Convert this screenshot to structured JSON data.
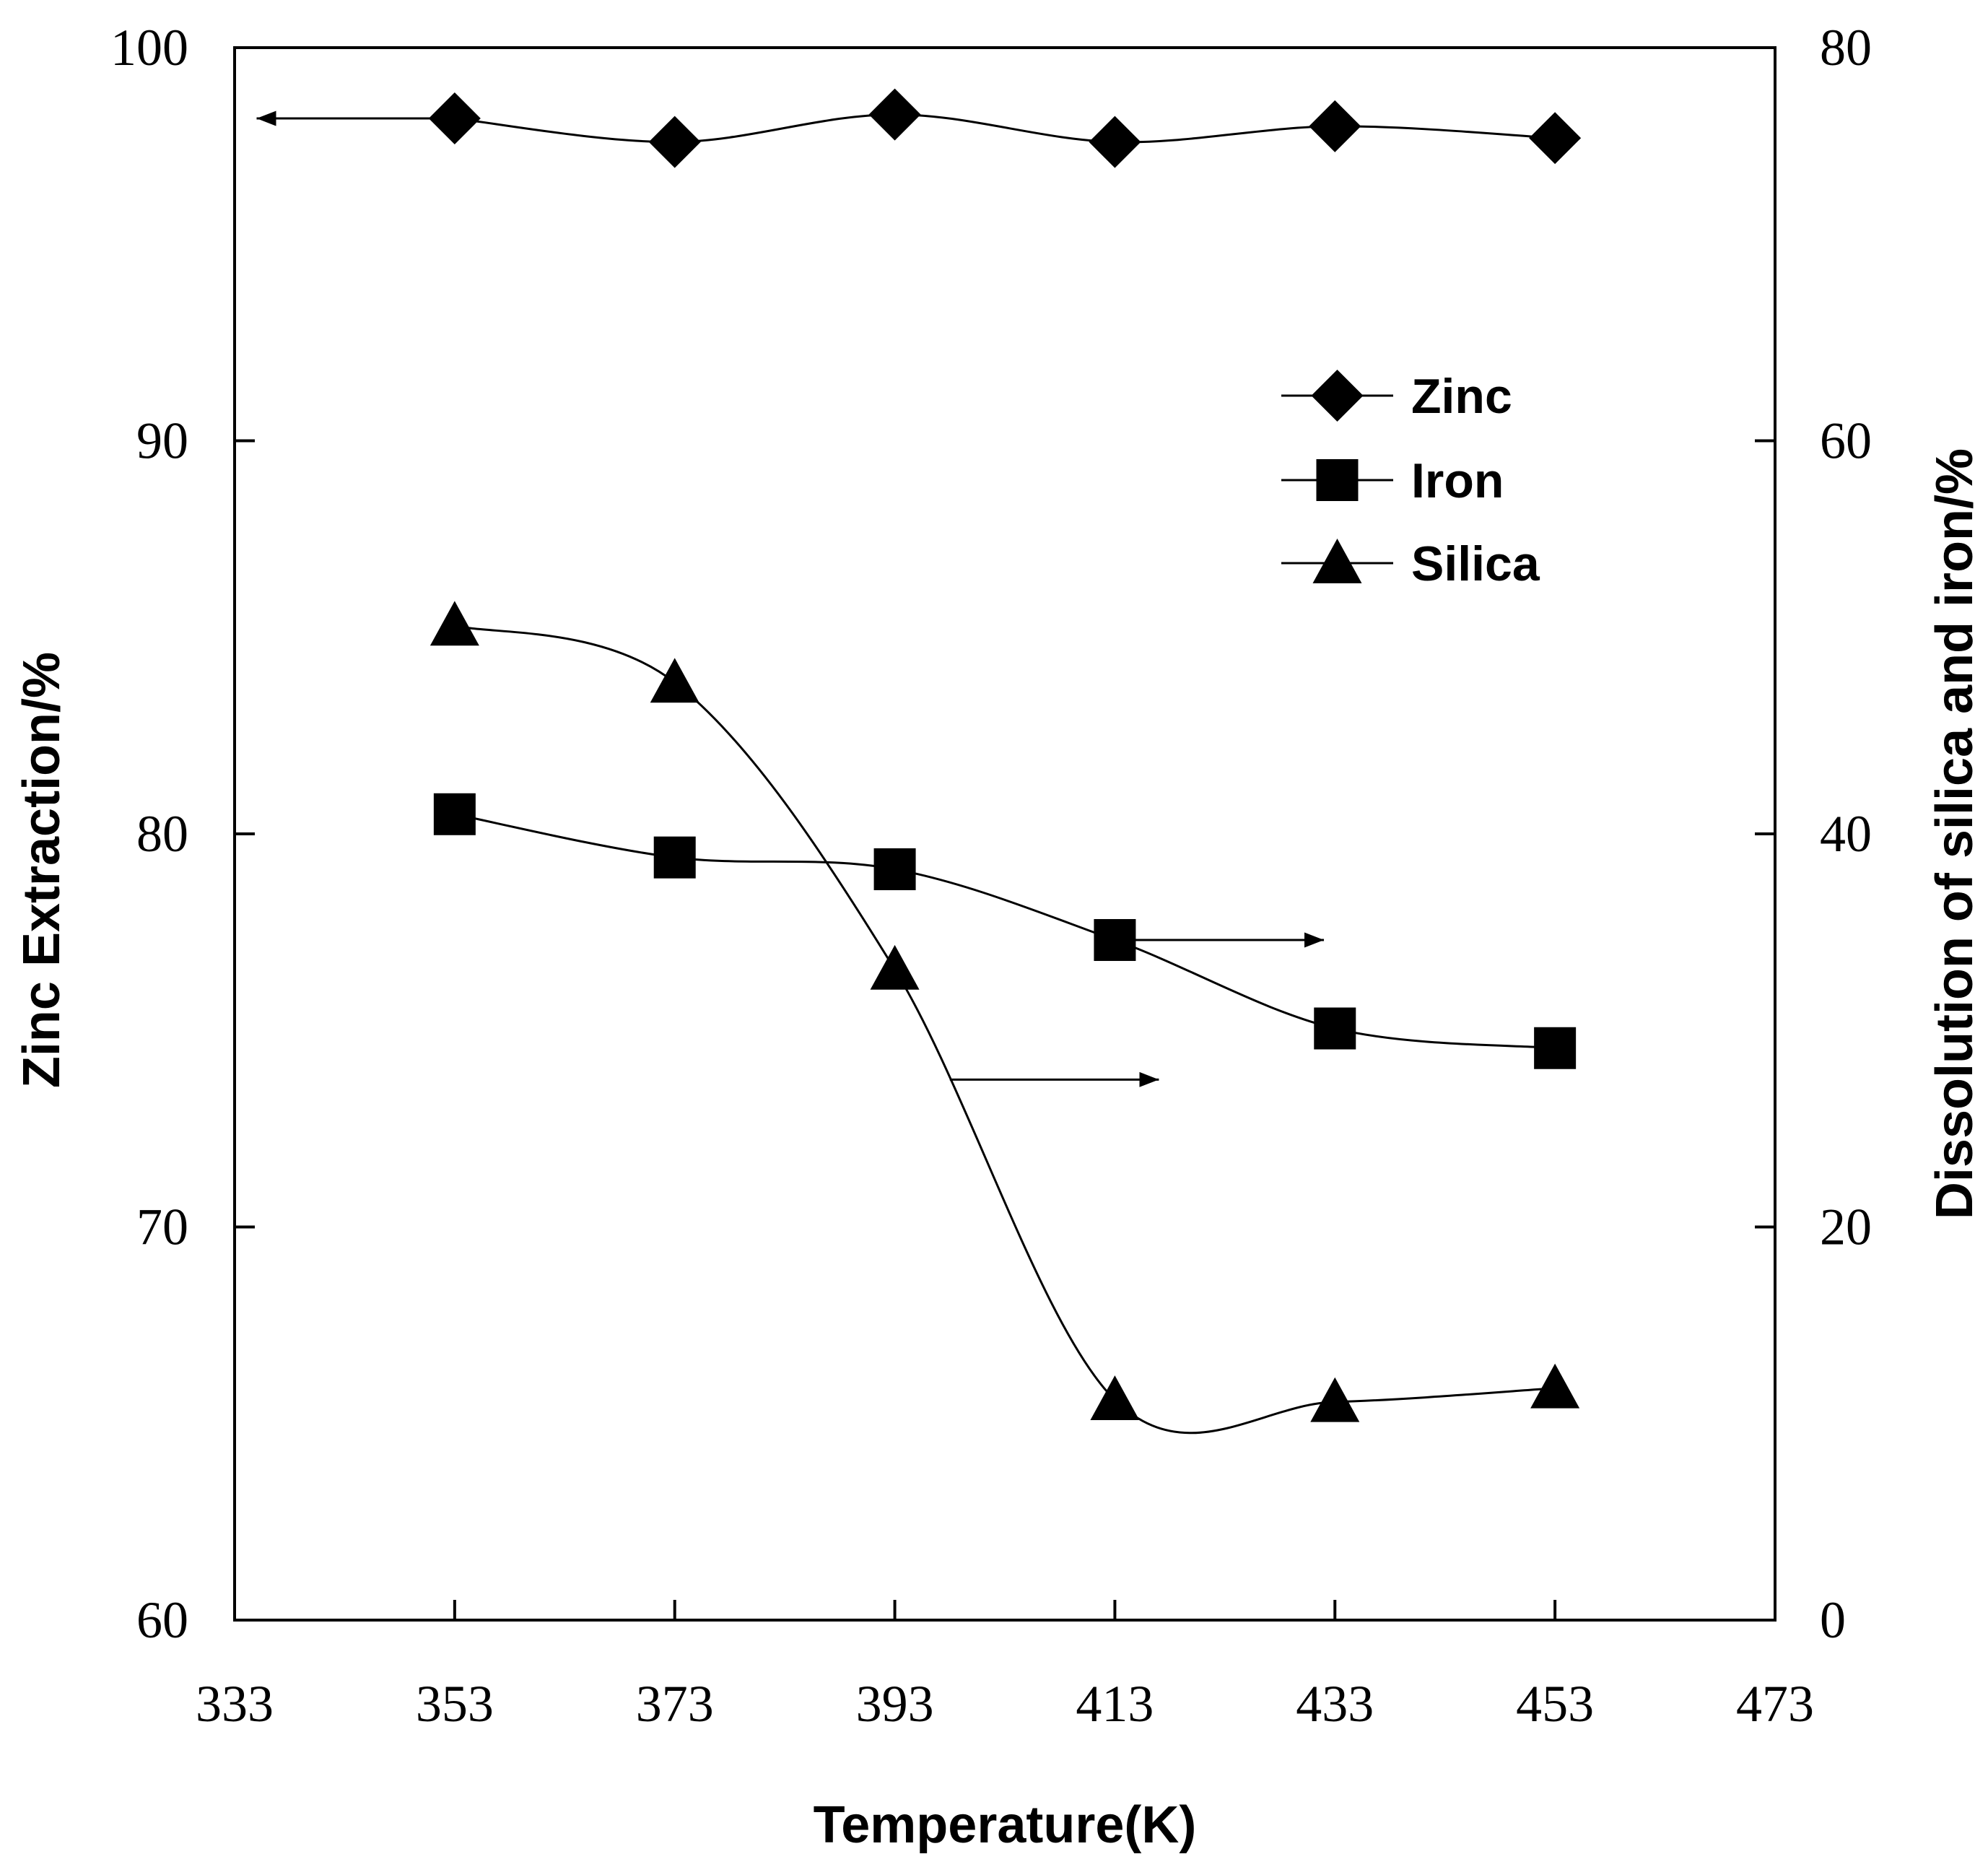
{
  "chart_data": {
    "type": "line",
    "title": "",
    "xlabel": "Temperature(K)",
    "ylabel_left": "Zinc Extraction/%",
    "ylabel_right": "Dissolution of silica and iron/%",
    "xlim": [
      333,
      473
    ],
    "xticks": [
      333,
      353,
      373,
      393,
      413,
      433,
      453,
      473
    ],
    "ylim_left": [
      60,
      100
    ],
    "yticks_left": [
      60,
      70,
      80,
      90,
      100
    ],
    "ylim_right": [
      0,
      80
    ],
    "yticks_right": [
      0,
      20,
      40,
      60,
      80
    ],
    "x": [
      353,
      373,
      393,
      413,
      433,
      453
    ],
    "series": [
      {
        "name": "Zinc",
        "marker": "diamond",
        "axis": "left",
        "values": [
          98.2,
          97.6,
          98.3,
          97.6,
          98.0,
          97.7
        ]
      },
      {
        "name": "Iron",
        "marker": "square",
        "axis": "right",
        "values": [
          41.0,
          38.8,
          38.2,
          34.6,
          30.1,
          29.1
        ]
      },
      {
        "name": "Silica",
        "marker": "triangle",
        "axis": "right",
        "values": [
          50.6,
          47.7,
          33.1,
          11.2,
          11.1,
          11.8
        ]
      }
    ],
    "legend_position": "top-right",
    "annotations": [
      {
        "type": "arrow",
        "direction": "left",
        "from_x": 353,
        "y": 98.2,
        "to_x": 335,
        "axis": "left"
      },
      {
        "type": "arrow",
        "direction": "right",
        "from_x": 413,
        "y": 34.6,
        "to_x": 432,
        "axis": "right"
      },
      {
        "type": "arrow",
        "direction": "right",
        "from_x": 398,
        "y": 27.5,
        "to_x": 417,
        "axis": "right"
      }
    ]
  }
}
